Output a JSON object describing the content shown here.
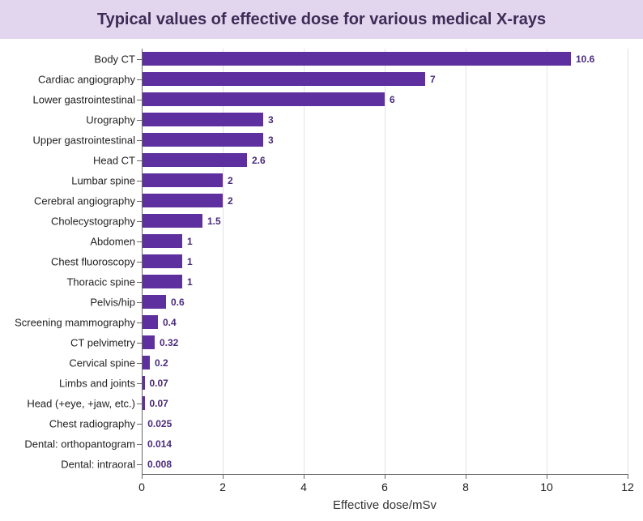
{
  "chart": {
    "type": "bar-horizontal",
    "title": "Typical values of effective dose for various medical X-rays",
    "title_color": "#3e2b56",
    "title_fontsize": 20,
    "title_bar_bg": "#e1d6ed",
    "background_color": "#ffffff",
    "bar_color": "#5e2f9e",
    "value_label_color": "#4a2b7a",
    "value_label_fontsize": 12,
    "category_label_color": "#222222",
    "category_label_fontsize": 13,
    "axis_line_color": "#666666",
    "grid_color": "#e4e0e8",
    "x_axis_label": "Effective dose/mSv",
    "x_axis_label_color": "#333333",
    "x_axis_label_fontsize": 15,
    "x_tick_label_color": "#222222",
    "x_tick_label_fontsize": 14,
    "xlim_min": 0,
    "xlim_max": 12,
    "xtick_step": 2,
    "bar_height_ratio": 0.65,
    "categories": [
      "Body CT",
      "Cardiac angiography",
      "Lower gastrointestinal",
      "Urography",
      "Upper gastrointestinal",
      "Head CT",
      "Lumbar spine",
      "Cerebral angiography",
      "Cholecystography",
      "Abdomen",
      "Chest fluoroscopy",
      "Thoracic spine",
      "Pelvis/hip",
      "Screening mammography",
      "CT pelvimetry",
      "Cervical spine",
      "Limbs and joints",
      "Head (+eye,  +jaw, etc.)",
      "Chest radiography",
      "Dental: orthopantogram",
      "Dental: intraoral"
    ],
    "values": [
      10.6,
      7,
      6,
      3,
      3,
      2.6,
      2,
      2,
      1.5,
      1,
      1,
      1,
      0.6,
      0.4,
      0.32,
      0.2,
      0.07,
      0.07,
      0.025,
      0.014,
      0.008
    ],
    "value_labels": [
      "10.6",
      "7",
      "6",
      "3",
      "3",
      "2.6",
      "2",
      "2",
      "1.5",
      "1",
      "1",
      "1",
      "0.6",
      "0.4",
      "0.32",
      "0.2",
      "0.07",
      "0.07",
      "0.025",
      "0.014",
      "0.008"
    ]
  }
}
